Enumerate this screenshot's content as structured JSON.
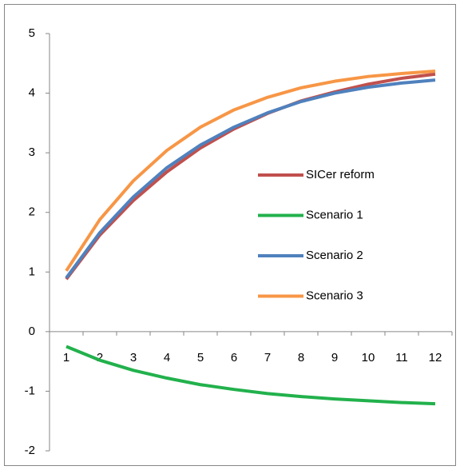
{
  "chart_data": {
    "type": "line",
    "categories": [
      1,
      2,
      3,
      4,
      5,
      6,
      7,
      8,
      9,
      10,
      11,
      12
    ],
    "series": [
      {
        "name": "SICer reform",
        "color": "#c0504d",
        "values": [
          0.88,
          1.62,
          2.2,
          2.68,
          3.08,
          3.4,
          3.66,
          3.87,
          4.02,
          4.15,
          4.25,
          4.32
        ]
      },
      {
        "name": "Scenario 1",
        "color": "#22b14c",
        "values": [
          -0.25,
          -0.48,
          -0.65,
          -0.78,
          -0.89,
          -0.97,
          -1.04,
          -1.09,
          -1.13,
          -1.16,
          -1.19,
          -1.21
        ]
      },
      {
        "name": "Scenario 2",
        "color": "#4f81bd",
        "values": [
          0.9,
          1.66,
          2.26,
          2.75,
          3.13,
          3.43,
          3.67,
          3.86,
          4.0,
          4.1,
          4.17,
          4.22
        ]
      },
      {
        "name": "Scenario 3",
        "color": "#f79646",
        "values": [
          1.02,
          1.88,
          2.53,
          3.04,
          3.43,
          3.72,
          3.93,
          4.09,
          4.2,
          4.28,
          4.33,
          4.37
        ]
      }
    ],
    "ylim": [
      -2,
      5
    ],
    "yticks": [
      -2,
      -1,
      0,
      1,
      2,
      3,
      4,
      5
    ],
    "grid": false,
    "legend": "right"
  }
}
